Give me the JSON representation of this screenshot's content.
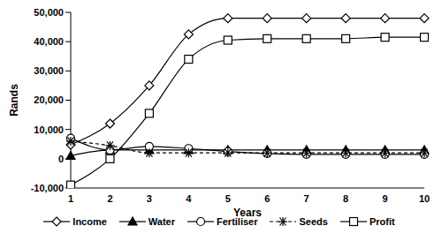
{
  "chart_data": {
    "type": "line",
    "x_label": "Years",
    "y_label": "Rands",
    "categories": [
      "1",
      "2",
      "3",
      "4",
      "5",
      "6",
      "7",
      "8",
      "9",
      "10"
    ],
    "ylim": [
      -10000,
      50000
    ],
    "yticks": [
      {
        "value": -10000,
        "label": "-10,000"
      },
      0,
      {
        "value": 10000,
        "label": "10,000"
      },
      {
        "value": 20000,
        "label": "20,000"
      },
      {
        "value": 30000,
        "label": "30,000"
      },
      {
        "value": 40000,
        "label": "40,000"
      },
      {
        "value": 50000,
        "label": "50,000"
      }
    ],
    "grid": false,
    "legend": "bottom",
    "series": [
      {
        "name": "Income",
        "color": "#000000",
        "marker": "diamond",
        "line_style": "solid",
        "values": [
          4800,
          12000,
          25000,
          42500,
          48000,
          48000,
          48000,
          48000,
          48000,
          48000
        ]
      },
      {
        "name": "Water",
        "color": "#000000",
        "marker": "triangle",
        "line_style": "solid",
        "values": [
          1000,
          3000,
          3000,
          3000,
          3000,
          3000,
          3000,
          3000,
          3000,
          3000
        ]
      },
      {
        "name": "Fertiliser",
        "color": "#000000",
        "marker": "circle",
        "line_style": "solid",
        "values": [
          7000,
          3000,
          4200,
          3500,
          2500,
          1800,
          1500,
          1500,
          1500,
          1500
        ]
      },
      {
        "name": "Seeds",
        "color": "#000000",
        "marker": "asterisk",
        "line_style": "dashed",
        "values": [
          6000,
          4500,
          2000,
          2000,
          2000,
          2000,
          2000,
          2000,
          2000,
          2000
        ]
      },
      {
        "name": "Profit",
        "color": "#000000",
        "marker": "square",
        "line_style": "solid",
        "values": [
          -9000,
          0,
          15500,
          34000,
          40500,
          41000,
          41000,
          41000,
          41500,
          41500
        ]
      }
    ]
  }
}
